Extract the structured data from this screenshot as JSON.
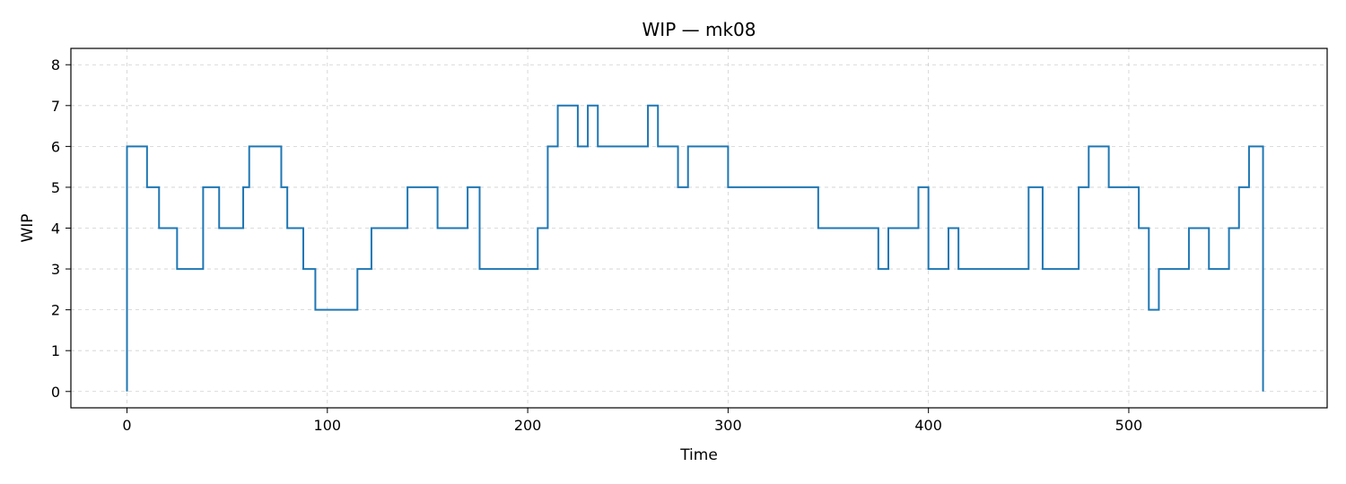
{
  "chart_data": {
    "type": "line",
    "style": "step",
    "title": "WIP — mk08",
    "xlabel": "Time",
    "ylabel": "WIP",
    "xlim": [
      -28,
      599
    ],
    "ylim": [
      -0.4,
      8.4
    ],
    "xticks": [
      0,
      100,
      200,
      300,
      400,
      500
    ],
    "yticks": [
      0,
      1,
      2,
      3,
      4,
      5,
      6,
      7,
      8
    ],
    "grid": true,
    "legend": "none",
    "line_color": "#1f77b4",
    "series": [
      {
        "x": [
          0,
          5,
          10,
          16,
          25,
          38,
          46,
          58,
          61,
          69,
          77,
          80,
          88,
          94,
          115,
          122,
          123,
          136,
          140,
          155,
          170,
          176,
          190,
          205,
          210,
          215,
          225,
          230,
          235,
          243,
          250,
          260,
          265,
          275,
          280,
          300,
          315,
          335,
          345,
          360,
          363,
          375,
          380,
          385,
          395,
          400,
          410,
          415,
          450,
          457,
          462,
          475,
          480,
          490,
          505,
          510,
          515,
          530,
          540,
          550,
          555,
          560,
          567
        ],
        "y": [
          6,
          6,
          5,
          4,
          3,
          5,
          4,
          5,
          6,
          6,
          5,
          4,
          3,
          2,
          3,
          4,
          4,
          4,
          5,
          4,
          5,
          3,
          3,
          4,
          6,
          7,
          6,
          7,
          6,
          6,
          6,
          7,
          6,
          5,
          6,
          5,
          5,
          5,
          4,
          4,
          4,
          3,
          4,
          4,
          5,
          3,
          4,
          3,
          5,
          3,
          3,
          5,
          6,
          5,
          4,
          2,
          3,
          4,
          3,
          4,
          5,
          6,
          0
        ]
      }
    ]
  }
}
